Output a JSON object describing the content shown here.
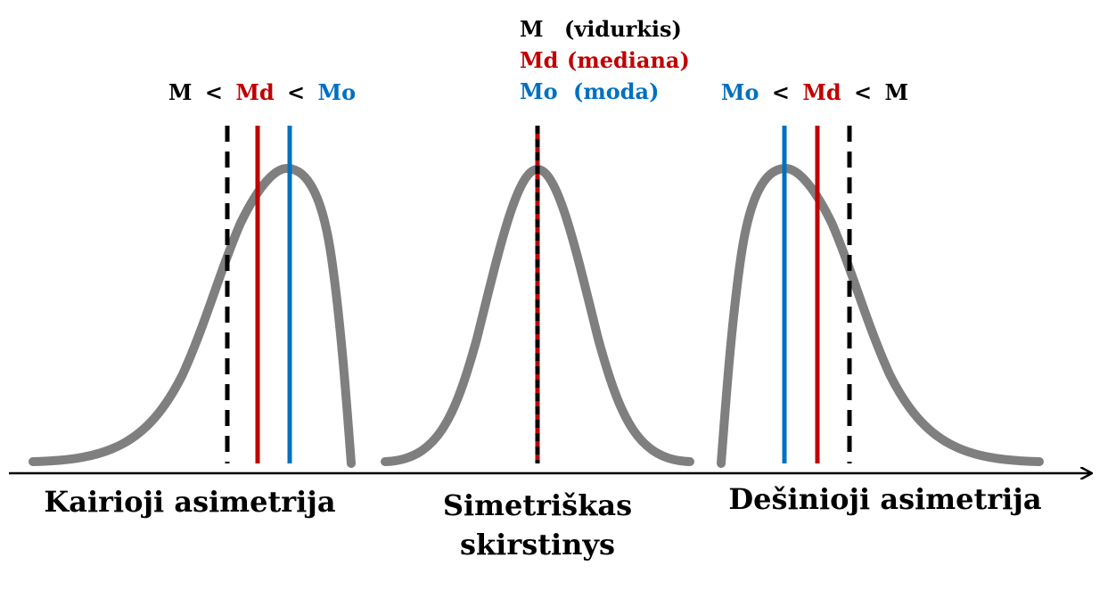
{
  "colors": {
    "mean": "#000000",
    "median": "#c00000",
    "mode": "#0070c0",
    "curve": "#7f7f7f",
    "axis": "#000000"
  },
  "legend": {
    "mean_label": "M",
    "mean_desc": "(vidurkis)",
    "median_label": "Md",
    "median_desc": "(mediana)",
    "mode_label": "Mo",
    "mode_desc": "(moda)"
  },
  "left": {
    "relation": [
      "M",
      "<",
      "Md",
      "<",
      "Mo"
    ],
    "caption": "Kairioji asimetrija"
  },
  "center": {
    "caption_line1": "Simetriškas",
    "caption_line2": "skirstinys"
  },
  "right": {
    "relation": [
      "Mo",
      "<",
      "Md",
      "<",
      "M"
    ],
    "caption": "Dešinioji asimetrija"
  }
}
